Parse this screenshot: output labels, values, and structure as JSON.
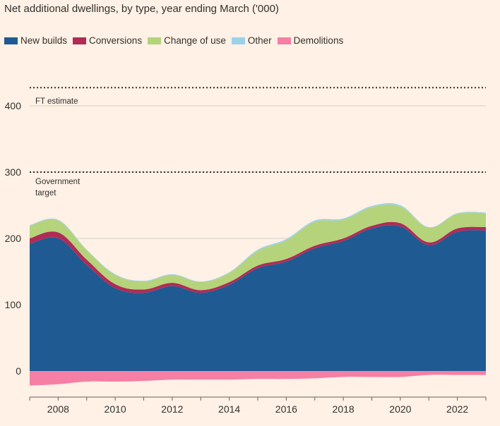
{
  "chart_data": {
    "type": "area",
    "title": "Net additional dwellings, by type, year ending March ('000)",
    "xlabel": "",
    "ylabel": "",
    "xlim": [
      2007,
      2023
    ],
    "ylim": [
      -25,
      440
    ],
    "x_ticks": [
      "2008",
      "2010",
      "2012",
      "2014",
      "2016",
      "2018",
      "2020",
      "2022"
    ],
    "y_ticks": [
      "0",
      "100",
      "200",
      "300",
      "400"
    ],
    "x": [
      2007,
      2008,
      2009,
      2010,
      2011,
      2012,
      2013,
      2014,
      2015,
      2016,
      2017,
      2018,
      2019,
      2020,
      2021,
      2022,
      2023
    ],
    "series": [
      {
        "name": "New builds",
        "color": "#1f5a92",
        "values": [
          192,
          200,
          160,
          125,
          118,
          128,
          118,
          130,
          155,
          165,
          185,
          196,
          215,
          218,
          190,
          210,
          212
        ]
      },
      {
        "name": "Conversions",
        "color": "#b12b57",
        "values": [
          8,
          9,
          8,
          6,
          5,
          5,
          4,
          4,
          4,
          4,
          4,
          4,
          4,
          5,
          4,
          5,
          5
        ]
      },
      {
        "name": "Change of use",
        "color": "#b5d37b",
        "values": [
          19,
          18,
          14,
          14,
          12,
          12,
          12,
          14,
          22,
          28,
          36,
          28,
          28,
          25,
          22,
          22,
          21
        ]
      },
      {
        "name": "Other",
        "color": "#9bd2e9",
        "values": [
          1,
          1,
          1,
          1,
          1,
          1,
          1,
          1,
          2,
          2,
          2,
          2,
          2,
          2,
          1,
          1,
          1
        ]
      },
      {
        "name": "Demolitions",
        "color": "#f57fa5",
        "values": [
          -22,
          -20,
          -16,
          -16,
          -15,
          -13,
          -13,
          -13,
          -12,
          -12,
          -11,
          -9,
          -9,
          -9,
          -6,
          -6,
          -6
        ]
      }
    ],
    "reference_lines": [
      {
        "label": "FT estimate",
        "value": 420
      },
      {
        "label": "Government target",
        "value": 300
      }
    ],
    "legend_position": "top-left"
  },
  "colors": {
    "background": "#fff1e5",
    "grid": "#d6cec6",
    "text": "#33302e"
  }
}
